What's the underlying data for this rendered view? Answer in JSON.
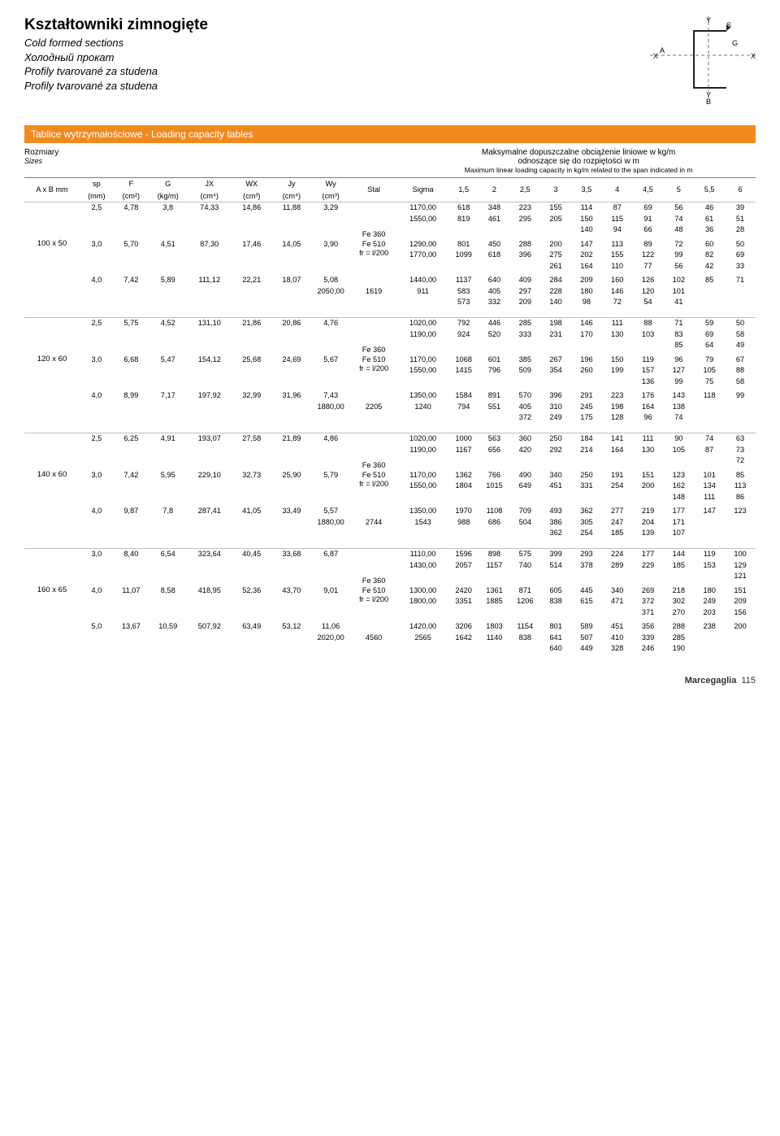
{
  "header": {
    "title": "Kształtowniki zimnogięte",
    "subs": [
      "Cold formed sections",
      "Холодный прокат",
      "Profily tvarované za studena",
      "Profily tvarované za studena"
    ]
  },
  "diagram": {
    "labels": {
      "A": "A",
      "B": "B",
      "G": "G",
      "S": "S",
      "X": "X",
      "Y": "Y"
    },
    "stroke": "#777777",
    "dash": "4,3",
    "profile_stroke": "#222222"
  },
  "table": {
    "bar_title": "Tablice wytrzymałościowe - ",
    "bar_title_suffix": "Loading capacity tables",
    "sizes_label": "Rozmiary",
    "sizes_sub": "Sizes",
    "span_title_1": "Maksymalne dopuszczalne obciążenie liniowe w kg/m",
    "span_title_2": "odnoszące się do rozpiętości w m",
    "span_title_3": "Maximum linear loading capacity in kg/m related to the span indicated in m",
    "cols": {
      "axb": "A x B mm",
      "sp": "sp",
      "sp_u": "(mm)",
      "F": "F",
      "F_u": "(cm²)",
      "G": "G",
      "G_u": "(kg/m)",
      "JX": "JX",
      "JX_u": "(cm⁴)",
      "WX": "WX",
      "WX_u": "(cm³)",
      "Jy": "Jy",
      "Jy_u": "(cm⁴)",
      "Wy": "Wy",
      "Wy_u": "(cm³)",
      "Stal": "Stal",
      "Sigma": "Sigma",
      "spans": [
        "1,5",
        "2",
        "2,5",
        "3",
        "3,5",
        "4",
        "4,5",
        "5",
        "5,5",
        "6"
      ]
    },
    "steel_label_1": "Fe 360",
    "steel_label_2": "Fe 510",
    "steel_label_3": "fr = l/200",
    "sections": [
      {
        "size": "100 x 50",
        "rows": [
          {
            "sp": "2,5",
            "F": "4,78",
            "G": "3,8",
            "JX": "74,33",
            "WX": "14,86",
            "Jy": "11,88",
            "Wy": "3,29",
            "sigma": [
              "1170,00",
              "1550,00"
            ],
            "v": [
              [
                "618",
                "348",
                "223",
                "155",
                "114",
                "87",
                "69",
                "56",
                "46",
                "39"
              ],
              [
                "819",
                "461",
                "295",
                "205",
                "150",
                "115",
                "91",
                "74",
                "61",
                "51"
              ],
              [
                "",
                "",
                "",
                "",
                "140",
                "94",
                "66",
                "48",
                "36",
                "28"
              ]
            ]
          },
          {
            "sp": "3,0",
            "F": "5,70",
            "G": "4,51",
            "JX": "87,30",
            "WX": "17,46",
            "Jy": "14,05",
            "Wy": "3,90",
            "sigma": [
              "1290,00",
              "1770,00"
            ],
            "v": [
              [
                "801",
                "450",
                "288",
                "200",
                "147",
                "113",
                "89",
                "72",
                "60",
                "50"
              ],
              [
                "1099",
                "618",
                "396",
                "275",
                "202",
                "155",
                "122",
                "99",
                "82",
                "69"
              ],
              [
                "",
                "",
                "",
                "261",
                "164",
                "110",
                "77",
                "56",
                "42",
                "33"
              ]
            ]
          },
          {
            "sp": "4,0",
            "F": "7,42",
            "G": "5,89",
            "JX": "111,12",
            "WX": "22,21",
            "Jy": "18,07",
            "Wy": "5,08",
            "sigma": [
              "1440,00",
              "2050,00"
            ],
            "v": [
              [
                "1137",
                "640",
                "409",
                "284",
                "209",
                "160",
                "126",
                "102",
                "85",
                "71"
              ],
              [
                "1619",
                "911",
                "583",
                "405",
                "297",
                "228",
                "180",
                "146",
                "120",
                "101"
              ],
              [
                "",
                "",
                "573",
                "332",
                "209",
                "140",
                "98",
                "72",
                "54",
                "41"
              ]
            ]
          }
        ]
      },
      {
        "size": "120 x 60",
        "rows": [
          {
            "sp": "2,5",
            "F": "5,75",
            "G": "4,52",
            "JX": "131,10",
            "WX": "21,86",
            "Jy": "20,86",
            "Wy": "4,76",
            "sigma": [
              "1020,00",
              "1190,00"
            ],
            "v": [
              [
                "792",
                "446",
                "285",
                "198",
                "146",
                "111",
                "88",
                "71",
                "59",
                "50"
              ],
              [
                "924",
                "520",
                "333",
                "231",
                "170",
                "130",
                "103",
                "83",
                "69",
                "58"
              ],
              [
                "",
                "",
                "",
                "",
                "",
                "",
                "",
                "85",
                "64",
                "49"
              ]
            ]
          },
          {
            "sp": "3,0",
            "F": "6,68",
            "G": "5,47",
            "JX": "154,12",
            "WX": "25,68",
            "Jy": "24,69",
            "Wy": "5,67",
            "sigma": [
              "1170,00",
              "1550,00"
            ],
            "v": [
              [
                "1068",
                "601",
                "385",
                "267",
                "196",
                "150",
                "119",
                "96",
                "79",
                "67"
              ],
              [
                "1415",
                "796",
                "509",
                "354",
                "260",
                "199",
                "157",
                "127",
                "105",
                "88"
              ],
              [
                "",
                "",
                "",
                "",
                "",
                "",
                "136",
                "99",
                "75",
                "58"
              ]
            ]
          },
          {
            "sp": "4,0",
            "F": "8,99",
            "G": "7,17",
            "JX": "197,92",
            "WX": "32,99",
            "Jy": "31,96",
            "Wy": "7,43",
            "sigma": [
              "1350,00",
              "1880,00"
            ],
            "v": [
              [
                "1584",
                "891",
                "570",
                "396",
                "291",
                "223",
                "176",
                "143",
                "118",
                "99"
              ],
              [
                "2205",
                "1240",
                "794",
                "551",
                "405",
                "310",
                "245",
                "198",
                "164",
                "138"
              ],
              [
                "",
                "",
                "",
                "",
                "372",
                "249",
                "175",
                "128",
                "96",
                "74"
              ]
            ]
          }
        ]
      },
      {
        "size": "140 x 60",
        "rows": [
          {
            "sp": "2,5",
            "F": "6,25",
            "G": "4,91",
            "JX": "193,07",
            "WX": "27,58",
            "Jy": "21,89",
            "Wy": "4,86",
            "sigma": [
              "1020,00",
              "1190,00"
            ],
            "v": [
              [
                "1000",
                "563",
                "360",
                "250",
                "184",
                "141",
                "111",
                "90",
                "74",
                "63"
              ],
              [
                "1167",
                "656",
                "420",
                "292",
                "214",
                "164",
                "130",
                "105",
                "87",
                "73"
              ],
              [
                "",
                "",
                "",
                "",
                "",
                "",
                "",
                "",
                "",
                "72"
              ]
            ]
          },
          {
            "sp": "3,0",
            "F": "7,42",
            "G": "5,95",
            "JX": "229,10",
            "WX": "32,73",
            "Jy": "25,90",
            "Wy": "5,79",
            "sigma": [
              "1170,00",
              "1550,00"
            ],
            "v": [
              [
                "1362",
                "766",
                "490",
                "340",
                "250",
                "191",
                "151",
                "123",
                "101",
                "85"
              ],
              [
                "1804",
                "1015",
                "649",
                "451",
                "331",
                "254",
                "200",
                "162",
                "134",
                "113"
              ],
              [
                "",
                "",
                "",
                "",
                "",
                "",
                "",
                "148",
                "111",
                "86"
              ]
            ]
          },
          {
            "sp": "4,0",
            "F": "9,87",
            "G": "7,8",
            "JX": "287,41",
            "WX": "41,05",
            "Jy": "33,49",
            "Wy": "5,57",
            "sigma": [
              "1350,00",
              "1880,00"
            ],
            "v": [
              [
                "1970",
                "1108",
                "709",
                "493",
                "362",
                "277",
                "219",
                "177",
                "147",
                "123"
              ],
              [
                "2744",
                "1543",
                "988",
                "686",
                "504",
                "386",
                "305",
                "247",
                "204",
                "171"
              ],
              [
                "",
                "",
                "",
                "",
                "",
                "362",
                "254",
                "185",
                "139",
                "107"
              ]
            ]
          }
        ]
      },
      {
        "size": "160 x 65",
        "rows": [
          {
            "sp": "3,0",
            "F": "8,40",
            "G": "6,54",
            "JX": "323,64",
            "WX": "40,45",
            "Jy": "33,68",
            "Wy": "6,87",
            "sigma": [
              "1110,00",
              "1430,00"
            ],
            "v": [
              [
                "1596",
                "898",
                "575",
                "399",
                "293",
                "224",
                "177",
                "144",
                "119",
                "100"
              ],
              [
                "2057",
                "1157",
                "740",
                "514",
                "378",
                "289",
                "229",
                "185",
                "153",
                "129"
              ],
              [
                "",
                "",
                "",
                "",
                "",
                "",
                "",
                "",
                "",
                "121"
              ]
            ]
          },
          {
            "sp": "4,0",
            "F": "11,07",
            "G": "8,58",
            "JX": "418,95",
            "WX": "52,36",
            "Jy": "43,70",
            "Wy": "9,01",
            "sigma": [
              "1300,00",
              "1800,00"
            ],
            "v": [
              [
                "2420",
                "1361",
                "871",
                "605",
                "445",
                "340",
                "269",
                "218",
                "180",
                "151"
              ],
              [
                "3351",
                "1885",
                "1206",
                "838",
                "615",
                "471",
                "372",
                "302",
                "249",
                "209"
              ],
              [
                "",
                "",
                "",
                "",
                "",
                "",
                "371",
                "270",
                "203",
                "156"
              ]
            ]
          },
          {
            "sp": "5,0",
            "F": "13,67",
            "G": "10,59",
            "JX": "507,92",
            "WX": "63,49",
            "Jy": "53,12",
            "Wy": "11,06",
            "sigma": [
              "1420,00",
              "2020,00"
            ],
            "v": [
              [
                "3206",
                "1803",
                "1154",
                "801",
                "589",
                "451",
                "356",
                "288",
                "238",
                "200"
              ],
              [
                "4560",
                "2565",
                "1642",
                "1140",
                "838",
                "641",
                "507",
                "410",
                "339",
                "285"
              ],
              [
                "",
                "",
                "",
                "",
                "",
                "640",
                "449",
                "328",
                "246",
                "190"
              ]
            ]
          }
        ]
      }
    ]
  },
  "footer": {
    "brand": "Marcegaglia",
    "page": "115"
  },
  "style": {
    "orange": "#f08a1f",
    "grid_color": "#bfbfbf",
    "header_border": "#7a7a7a",
    "body_font_size_pt": 9,
    "title_font_size_pt": 14,
    "col_widths_pct": [
      7.2,
      4.4,
      4.6,
      5.0,
      5.8,
      5.2,
      5.2,
      5.0,
      6.2,
      6.6,
      4.0,
      4.0,
      4.0,
      4.0,
      4.0,
      4.0,
      4.0,
      4.0,
      4.0,
      4.0
    ]
  }
}
